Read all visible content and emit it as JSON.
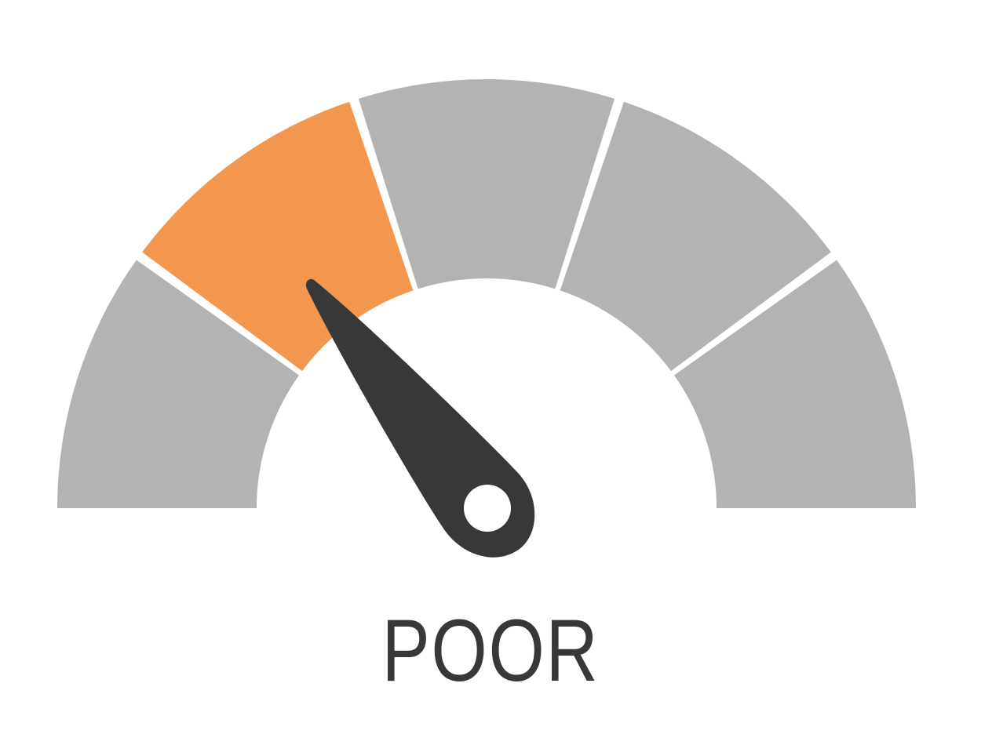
{
  "gauge": {
    "segment_count": 5,
    "active_segment_index": 1,
    "active_color": "#F4974E",
    "inactive_color": "#B3B3B3",
    "needle_color": "#383838",
    "background_color": "#FFFFFF",
    "needle_icon": "needle-icon",
    "needle_position_fraction": 0.3
  },
  "label": {
    "text": "POOR",
    "color": "#383838"
  }
}
